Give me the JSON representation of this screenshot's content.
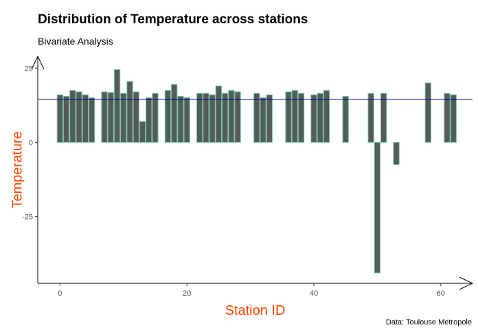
{
  "colors": {
    "bar_fill": "#595959",
    "bar_outline": "#66cdaa",
    "mean_line": "#00008b",
    "axis_title": "#ff4500",
    "axis": "#000000"
  },
  "chart_data": {
    "type": "bar",
    "title": "Distribution of Temperature across stations",
    "subtitle": "Bivariate Analysis",
    "caption": "Data: Toulouse Metropole",
    "xlabel": "Station ID",
    "ylabel": "Temperature",
    "xlim": [
      -3.5,
      65
    ],
    "ylim": [
      -47.5,
      29
    ],
    "xticks": [
      0,
      20,
      40,
      60
    ],
    "yticks": [
      -25,
      0,
      25
    ],
    "grid": false,
    "mean_line": 14.5,
    "x": [
      0,
      1,
      2,
      3,
      4,
      5,
      7,
      8,
      9,
      10,
      11,
      12,
      13,
      14,
      15,
      17,
      18,
      19,
      20,
      22,
      23,
      24,
      25,
      26,
      27,
      28,
      31,
      32,
      33,
      36,
      37,
      38,
      40,
      41,
      42,
      45,
      49,
      50,
      51,
      53,
      58,
      61,
      62
    ],
    "values": [
      16,
      15.5,
      17.5,
      17,
      16,
      15,
      17,
      16.8,
      24.5,
      16.5,
      20.5,
      17,
      7,
      15,
      16.5,
      17.5,
      19.5,
      15.5,
      15,
      16.5,
      16.5,
      16,
      19,
      16.5,
      17.5,
      17,
      16.5,
      15,
      16,
      17,
      17.5,
      16.5,
      16,
      16.5,
      17.5,
      15.5,
      16.5,
      -44,
      16.5,
      -7.5,
      20,
      16.5,
      16
    ]
  }
}
